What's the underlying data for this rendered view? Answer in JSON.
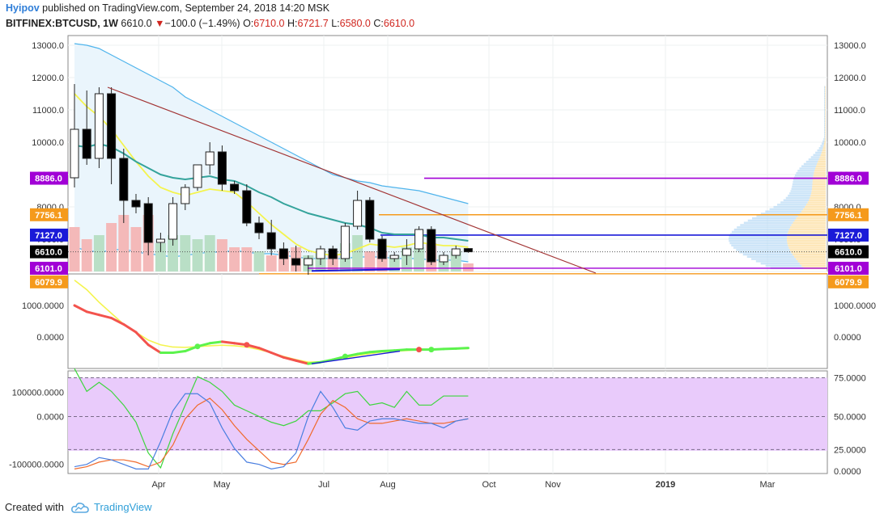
{
  "header": {
    "author": "Hyipov",
    "published_text": "published on TradingView.com, September 24, 2018 14:20 MSK",
    "symbol": "BITFINEX:BTCUSD, 1W",
    "last": "6610.0",
    "down_arrow": "▼",
    "change": "−100.0 (−1.49%)",
    "o_label": "O:",
    "o_val": "6710.0",
    "h_label": "H:",
    "h_val": "6721.7",
    "l_label": "L:",
    "l_val": "6580.0",
    "c_label": "C:",
    "c_val": "6610.0"
  },
  "footer": {
    "created_with": "Created with",
    "brand": "TradingView",
    "icon": "tradingview-cloud-icon"
  },
  "colors": {
    "up_candle": "#ffffff",
    "down_candle": "#000000",
    "vol_up": "#b9dfc6",
    "vol_down": "#f4b9b9",
    "band": "#4fb4ec",
    "band_fill": "#eaf5fc",
    "ma_teal": "#34a39b",
    "ma_yellow": "#f4f44e",
    "trend_red": "#a23434",
    "purple_line": "#a100d6",
    "orange_line": "#f59a1c",
    "blue_line": "#1a1ad8",
    "macd_red": "#f3534d",
    "macd_green": "#5cf34d",
    "stoch_fill": "#e9cbfb"
  },
  "chart_data": [
    {
      "type": "candlestick",
      "title": "",
      "yticks": [
        "13000.0",
        "12000.0",
        "11000.0",
        "10000.0",
        "9000.0",
        "8000.0",
        "7000.0",
        "6000.0"
      ],
      "ylim": [
        6000,
        13300
      ],
      "xticks": [
        "Apr",
        "May",
        "Jul",
        "Aug",
        "Oct",
        "Nov",
        "2019",
        "Mar"
      ],
      "price_labels": [
        {
          "text": "8886.0",
          "value": 8886,
          "color": "#a100d6"
        },
        {
          "text": "7756.1",
          "value": 7756.1,
          "color": "#f59a1c"
        },
        {
          "text": "7127.0",
          "value": 7127,
          "color": "#1a1ad8"
        },
        {
          "text": "6610.0",
          "value": 6610,
          "color": "#000000"
        },
        {
          "text": "6101.0",
          "value": 6101,
          "color": "#a100d6"
        },
        {
          "text": "6079.9",
          "value": 6079.9,
          "color": "#f59a1c"
        }
      ],
      "candles": [
        {
          "o": 8900,
          "h": 11800,
          "l": 8600,
          "c": 10400
        },
        {
          "o": 10400,
          "h": 11600,
          "l": 9300,
          "c": 9500
        },
        {
          "o": 9500,
          "h": 11700,
          "l": 9200,
          "c": 11500
        },
        {
          "o": 11500,
          "h": 11700,
          "l": 8700,
          "c": 9500
        },
        {
          "o": 9500,
          "h": 9800,
          "l": 7500,
          "c": 8200
        },
        {
          "o": 8200,
          "h": 8400,
          "l": 7800,
          "c": 8000
        },
        {
          "o": 8100,
          "h": 8300,
          "l": 6500,
          "c": 6900
        },
        {
          "o": 6900,
          "h": 7200,
          "l": 6600,
          "c": 7000
        },
        {
          "o": 7000,
          "h": 8300,
          "l": 6800,
          "c": 8100
        },
        {
          "o": 8100,
          "h": 8700,
          "l": 7900,
          "c": 8600
        },
        {
          "o": 8600,
          "h": 9300,
          "l": 8500,
          "c": 9300
        },
        {
          "o": 9300,
          "h": 10000,
          "l": 9000,
          "c": 9700
        },
        {
          "o": 9700,
          "h": 9900,
          "l": 8500,
          "c": 8700
        },
        {
          "o": 8700,
          "h": 8800,
          "l": 8400,
          "c": 8500
        },
        {
          "o": 8500,
          "h": 8700,
          "l": 7400,
          "c": 7500
        },
        {
          "o": 7500,
          "h": 7700,
          "l": 7000,
          "c": 7200
        },
        {
          "o": 7200,
          "h": 7600,
          "l": 6500,
          "c": 6700
        },
        {
          "o": 6700,
          "h": 6900,
          "l": 6200,
          "c": 6400
        },
        {
          "o": 6400,
          "h": 6800,
          "l": 6000,
          "c": 6200
        },
        {
          "o": 6200,
          "h": 6500,
          "l": 5900,
          "c": 6400
        },
        {
          "o": 6400,
          "h": 6800,
          "l": 6200,
          "c": 6700
        },
        {
          "o": 6700,
          "h": 6800,
          "l": 6200,
          "c": 6400
        },
        {
          "o": 6400,
          "h": 7500,
          "l": 6300,
          "c": 7400
        },
        {
          "o": 7400,
          "h": 8500,
          "l": 7300,
          "c": 8200
        },
        {
          "o": 8200,
          "h": 8300,
          "l": 6900,
          "c": 7000
        },
        {
          "o": 7000,
          "h": 7100,
          "l": 6300,
          "c": 6400
        },
        {
          "o": 6400,
          "h": 6600,
          "l": 6300,
          "c": 6500
        },
        {
          "o": 6500,
          "h": 7000,
          "l": 6200,
          "c": 6700
        },
        {
          "o": 6700,
          "h": 7400,
          "l": 6600,
          "c": 7300
        },
        {
          "o": 7300,
          "h": 7400,
          "l": 6200,
          "c": 6300
        },
        {
          "o": 6300,
          "h": 6600,
          "l": 6200,
          "c": 6500
        },
        {
          "o": 6500,
          "h": 6800,
          "l": 6400,
          "c": 6700
        },
        {
          "o": 6710,
          "h": 6721.7,
          "l": 6580,
          "c": 6610
        }
      ],
      "upper_band": [
        13050,
        13000,
        12900,
        12700,
        12500,
        12300,
        12100,
        11900,
        11700,
        11400,
        11200,
        11000,
        10800,
        10600,
        10400,
        10200,
        10000,
        9800,
        9600,
        9400,
        9200,
        9000,
        8900,
        8800,
        8750,
        8650,
        8600,
        8550,
        8500,
        8400,
        8300,
        8200,
        8100
      ],
      "lower_band": [
        6750,
        6650,
        6600,
        6650,
        6700,
        6600,
        6550,
        6500,
        6450,
        6500,
        6550,
        6600,
        6600,
        6650,
        6600,
        6550,
        6550,
        6500,
        6450,
        6400,
        6400,
        6400,
        6400,
        6450,
        6450,
        6450,
        6400,
        6400,
        6400,
        6350,
        6350,
        6350,
        6300
      ],
      "ma_teal": [
        9900,
        9850,
        9950,
        9850,
        9650,
        9400,
        9200,
        9000,
        8900,
        8850,
        8900,
        8950,
        8850,
        8800,
        8650,
        8450,
        8300,
        8100,
        7950,
        7800,
        7700,
        7600,
        7500,
        7450,
        7350,
        7200,
        7150,
        7150,
        7150,
        7050,
        7050,
        7000,
        6950
      ],
      "ma_yellow": [
        11500,
        11100,
        10800,
        10400,
        9900,
        9400,
        8950,
        8600,
        8450,
        8350,
        8450,
        8550,
        8500,
        8450,
        8150,
        7800,
        7450,
        7150,
        6850,
        6650,
        6550,
        6500,
        6550,
        6700,
        6850,
        6800,
        6750,
        6800,
        6900,
        6850,
        6800,
        6800,
        6750
      ],
      "volume": [
        {
          "v": 55,
          "dir": "down"
        },
        {
          "v": 40,
          "dir": "down"
        },
        {
          "v": 45,
          "dir": "up"
        },
        {
          "v": 60,
          "dir": "down"
        },
        {
          "v": 70,
          "dir": "down"
        },
        {
          "v": 55,
          "dir": "down"
        },
        {
          "v": 70,
          "dir": "down"
        },
        {
          "v": 35,
          "dir": "up"
        },
        {
          "v": 45,
          "dir": "up"
        },
        {
          "v": 45,
          "dir": "up"
        },
        {
          "v": 40,
          "dir": "up"
        },
        {
          "v": 45,
          "dir": "up"
        },
        {
          "v": 40,
          "dir": "down"
        },
        {
          "v": 30,
          "dir": "down"
        },
        {
          "v": 30,
          "dir": "down"
        },
        {
          "v": 25,
          "dir": "up"
        },
        {
          "v": 20,
          "dir": "down"
        },
        {
          "v": 25,
          "dir": "down"
        },
        {
          "v": 30,
          "dir": "down"
        },
        {
          "v": 20,
          "dir": "up"
        },
        {
          "v": 25,
          "dir": "up"
        },
        {
          "v": 20,
          "dir": "down"
        },
        {
          "v": 35,
          "dir": "up"
        },
        {
          "v": 45,
          "dir": "up"
        },
        {
          "v": 25,
          "dir": "down"
        },
        {
          "v": 25,
          "dir": "down"
        },
        {
          "v": 20,
          "dir": "up"
        },
        {
          "v": 30,
          "dir": "up"
        },
        {
          "v": 30,
          "dir": "up"
        },
        {
          "v": 35,
          "dir": "down"
        },
        {
          "v": 20,
          "dir": "up"
        },
        {
          "v": 25,
          "dir": "up"
        },
        {
          "v": 10,
          "dir": "down"
        }
      ]
    },
    {
      "type": "line",
      "title": "",
      "yticks": [
        "1000.0000",
        "0.0000"
      ],
      "ylim": [
        -1000,
        2000
      ],
      "macd": [
        1000,
        800,
        700,
        600,
        400,
        150,
        -250,
        -500,
        -500,
        -450,
        -300,
        -200,
        -150,
        -200,
        -250,
        -350,
        -500,
        -650,
        -750,
        -850,
        -800,
        -720,
        -620,
        -540,
        -480,
        -450,
        -430,
        -400,
        -400,
        -400,
        -380,
        -370,
        -350
      ],
      "signal": [
        1800,
        1500,
        1100,
        750,
        400,
        150,
        -100,
        -250,
        -320,
        -330,
        -310,
        -280,
        -260,
        -280,
        -320,
        -400,
        -500,
        -620,
        -720,
        -800,
        -790,
        -740,
        -660,
        -590,
        -530,
        -480,
        -450,
        -430,
        -410,
        -400,
        -390,
        -380,
        -370
      ]
    },
    {
      "type": "line",
      "title": "",
      "yticks_left": [
        "100000.0000",
        "0.0000",
        "-100000.0000"
      ],
      "yticks_right": [
        "75.0000",
        "50.0000",
        "25.0000",
        "0.0000"
      ],
      "ylim": [
        0,
        90
      ],
      "band": [
        20,
        80
      ],
      "stoch_green": [
        92,
        72,
        80,
        72,
        60,
        45,
        18,
        5,
        35,
        60,
        85,
        80,
        72,
        60,
        55,
        50,
        45,
        42,
        46,
        55,
        55,
        62,
        70,
        72,
        60,
        62,
        58,
        72,
        60,
        60,
        68,
        68,
        68
      ],
      "stoch_blue": [
        6,
        8,
        14,
        12,
        8,
        4,
        4,
        28,
        55,
        70,
        70,
        62,
        40,
        22,
        10,
        8,
        4,
        6,
        18,
        50,
        72,
        58,
        40,
        38,
        46,
        48,
        48,
        46,
        44,
        44,
        40,
        46,
        48
      ],
      "stoch_red": [
        4,
        6,
        10,
        12,
        12,
        10,
        6,
        10,
        25,
        48,
        60,
        66,
        56,
        42,
        30,
        20,
        10,
        8,
        10,
        30,
        52,
        64,
        58,
        48,
        44,
        44,
        46,
        48,
        46,
        44,
        44,
        46,
        48
      ]
    }
  ]
}
